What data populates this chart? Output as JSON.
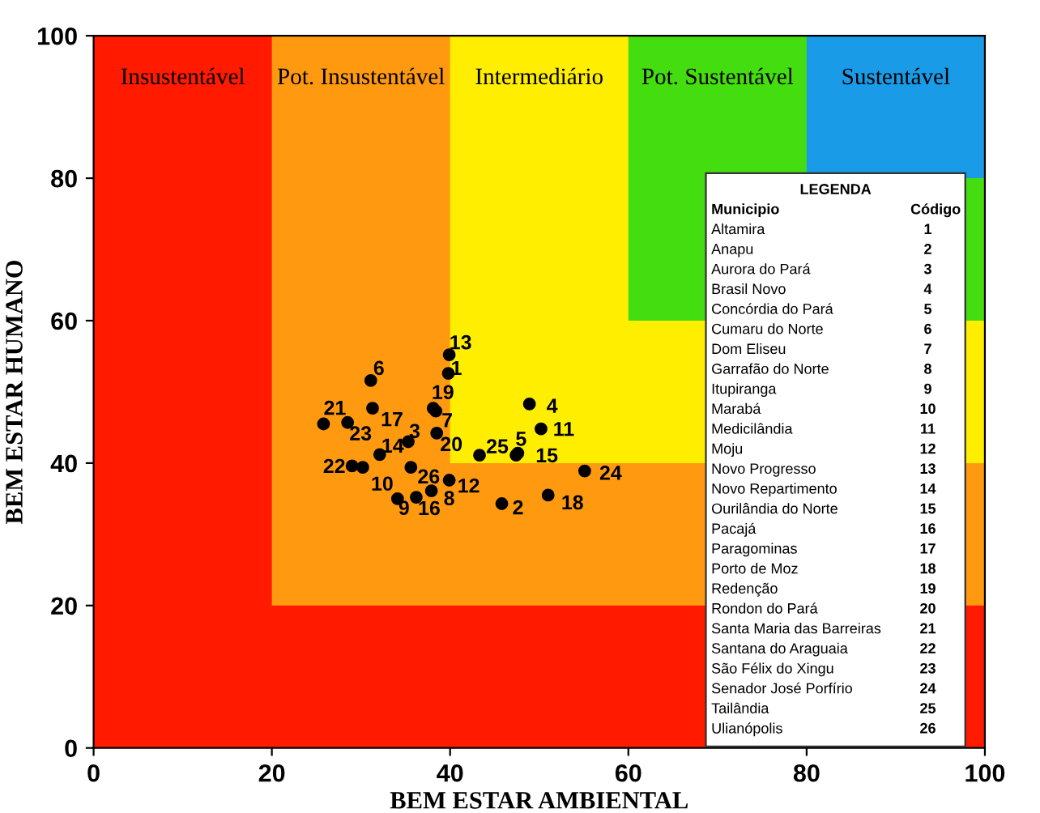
{
  "chart_data": {
    "type": "scatter",
    "xlabel": "BEM ESTAR AMBIENTAL",
    "ylabel": "BEM ESTAR HUMANO",
    "legend_title": "LEGENDA",
    "xlim": [
      0,
      100
    ],
    "ylim": [
      0,
      100
    ],
    "xticks": [
      0,
      20,
      40,
      60,
      80,
      100
    ],
    "yticks": [
      0,
      20,
      40,
      60,
      80,
      100
    ],
    "grid": false,
    "marker": "circle",
    "series": [
      {
        "color": "#000000",
        "x": [
          39.8,
          45.8,
          35.3,
          48.9,
          47.6,
          31.1,
          38.4,
          37.9,
          34.1,
          30.2,
          50.2,
          39.9,
          39.9,
          32.1,
          47.4,
          36.2,
          31.3,
          51.0,
          38.1,
          38.5,
          25.8,
          29.0,
          28.5,
          55.1,
          43.3,
          35.6
        ],
        "values": [
          52.6,
          34.3,
          43.0,
          48.3,
          41.4,
          51.6,
          47.3,
          36.1,
          35.0,
          39.4,
          44.8,
          37.6,
          55.2,
          41.2,
          41.1,
          35.2,
          47.7,
          35.5,
          47.7,
          44.2,
          45.5,
          39.6,
          45.7,
          38.9,
          41.1,
          39.4
        ]
      }
    ],
    "annotations": [
      {
        "text": "1",
        "x": 39.8,
        "y": 52.6
      },
      {
        "text": "2",
        "x": 45.8,
        "y": 34.3
      },
      {
        "text": "3",
        "x": 35.3,
        "y": 43.0
      },
      {
        "text": "4",
        "x": 48.9,
        "y": 48.3
      },
      {
        "text": "5",
        "x": 47.6,
        "y": 41.4
      },
      {
        "text": "6",
        "x": 31.1,
        "y": 51.6
      },
      {
        "text": "7",
        "x": 38.4,
        "y": 47.3
      },
      {
        "text": "8",
        "x": 37.9,
        "y": 36.1
      },
      {
        "text": "9",
        "x": 34.1,
        "y": 35.0
      },
      {
        "text": "10",
        "x": 30.2,
        "y": 39.4
      },
      {
        "text": "11",
        "x": 50.2,
        "y": 44.8
      },
      {
        "text": "12",
        "x": 39.9,
        "y": 37.6
      },
      {
        "text": "13",
        "x": 39.9,
        "y": 55.2
      },
      {
        "text": "14",
        "x": 32.1,
        "y": 41.2
      },
      {
        "text": "15",
        "x": 47.4,
        "y": 41.1
      },
      {
        "text": "16",
        "x": 36.2,
        "y": 35.2
      },
      {
        "text": "17",
        "x": 31.3,
        "y": 47.7
      },
      {
        "text": "18",
        "x": 51.0,
        "y": 35.5
      },
      {
        "text": "19",
        "x": 38.1,
        "y": 47.7
      },
      {
        "text": "20",
        "x": 38.5,
        "y": 44.2
      },
      {
        "text": "21",
        "x": 25.8,
        "y": 45.5
      },
      {
        "text": "22",
        "x": 29.0,
        "y": 39.6
      },
      {
        "text": "23",
        "x": 28.5,
        "y": 45.7
      },
      {
        "text": "24",
        "x": 55.1,
        "y": 38.9
      },
      {
        "text": "25",
        "x": 43.3,
        "y": 41.1
      },
      {
        "text": "26",
        "x": 35.6,
        "y": 39.4
      },
      "Insustentável",
      "Pot. Insustentável",
      "Intermediário",
      "Pot. Sustentável",
      "Sustentável",
      "Municipio",
      "Código",
      "Altamira",
      "1",
      "Anapu",
      "2",
      "Aurora do Pará",
      "3",
      "Brasil Novo",
      "4",
      "Concórdia do Pará",
      "5",
      "Cumaru do Norte",
      "6",
      "Dom Eliseu",
      "7",
      "Garrafão do Norte",
      "8",
      "Itupiranga",
      "9",
      "Marabá",
      "10",
      "Medicilândia",
      "11",
      "Moju",
      "12",
      "Novo Progresso",
      "13",
      "Novo Repartimento",
      "14",
      "Ourilândia do Norte",
      "15",
      "Pacajá",
      "16",
      "Paragominas",
      "17",
      "Porto de Moz",
      "18",
      "Redenção",
      "19",
      "Rondon do Pará",
      "20",
      "Santa Maria das Barreiras",
      "21",
      "Santana do Araguaia",
      "22",
      "São Félix do Xingu",
      "23",
      "Senador José Porfírio",
      "24",
      "Tailândia",
      "25",
      "Ulianópolis",
      "26"
    ]
  }
}
